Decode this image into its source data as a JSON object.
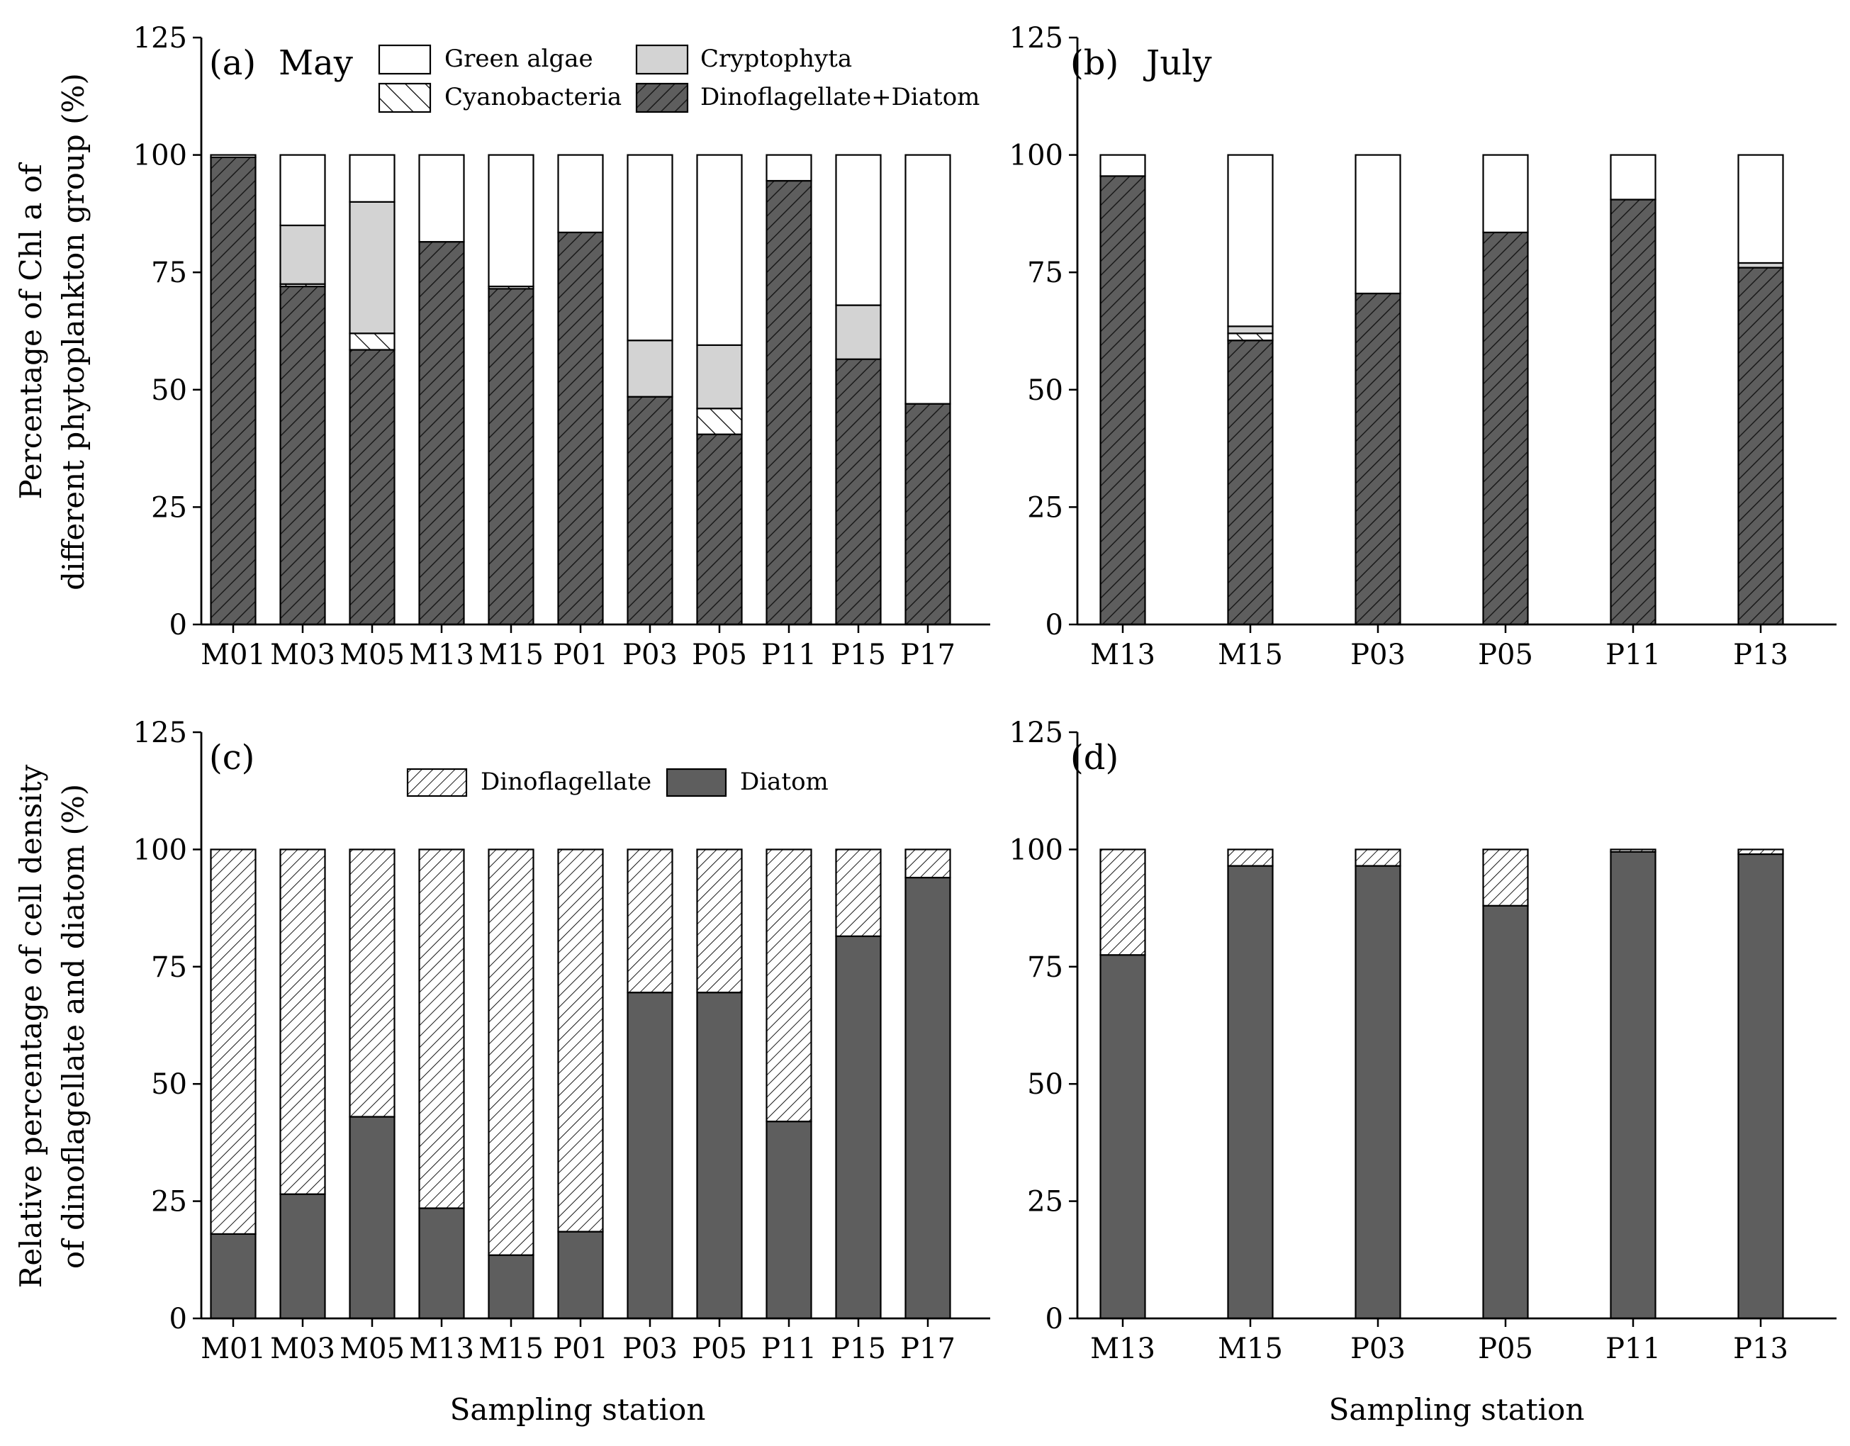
{
  "axis_titles": {
    "y_top_line1": "Percentage of Chl a of",
    "y_top_line2": "different phytoplankton group (%)",
    "y_bottom_line1": "Relative percentage of cell density",
    "y_bottom_line2": "of dinoflagellate and diatom (%)",
    "x_bottom_left": "Sampling station",
    "x_bottom_right": "Sampling station"
  },
  "colors": {
    "dark": "#5e5e5e",
    "light_gray": "#d3d3d3",
    "white": "#ffffff",
    "stroke": "#000000"
  },
  "chart_data": [
    {
      "id": "a",
      "type": "bar",
      "stacked": true,
      "panel_label": "(a)",
      "title": "May",
      "ylim": [
        0,
        125
      ],
      "yticks": [
        0,
        25,
        50,
        75,
        100,
        125
      ],
      "xlabel": "",
      "ylabel": "Percentage of Chl a of different phytoplankton group (%)",
      "categories": [
        "M01",
        "M03",
        "M05",
        "M13",
        "M15",
        "P01",
        "P03",
        "P05",
        "P11",
        "P15",
        "P17"
      ],
      "series": [
        {
          "name": "Dinoflagellate+Diatom",
          "fill": "dark-hatch",
          "values": [
            99.5,
            72,
            58.5,
            81.5,
            71.5,
            83.5,
            48.5,
            40.5,
            94.5,
            56.5,
            47
          ]
        },
        {
          "name": "Cyanobacteria",
          "fill": "sparse-hatch",
          "values": [
            0,
            0.5,
            3.5,
            0,
            0.5,
            0,
            0,
            5.5,
            0,
            0,
            0
          ]
        },
        {
          "name": "Cryptophyta",
          "fill": "light-gray",
          "values": [
            0,
            12.5,
            28,
            0,
            0,
            0,
            12,
            13.5,
            0,
            11.5,
            0
          ]
        },
        {
          "name": "Green algae",
          "fill": "white",
          "values": [
            0.5,
            15,
            10,
            18.5,
            28,
            16.5,
            39.5,
            40.5,
            5.5,
            32,
            53
          ]
        }
      ],
      "legend": {
        "entries": [
          {
            "name": "Green algae",
            "fill": "white"
          },
          {
            "name": "Cryptophyta",
            "fill": "light-gray"
          },
          {
            "name": "Cyanobacteria",
            "fill": "sparse-hatch"
          },
          {
            "name": "Dinoflagellate+Diatom",
            "fill": "dark-hatch"
          }
        ],
        "placement": "top"
      }
    },
    {
      "id": "b",
      "type": "bar",
      "stacked": true,
      "panel_label": "(b)",
      "title": "July",
      "ylim": [
        0,
        125
      ],
      "yticks": [
        0,
        25,
        50,
        75,
        100,
        125
      ],
      "xlabel": "",
      "ylabel": "",
      "categories": [
        "M13",
        "M15",
        "P03",
        "P05",
        "P11",
        "P13"
      ],
      "series": [
        {
          "name": "Dinoflagellate+Diatom",
          "fill": "dark-hatch",
          "values": [
            95.5,
            60.5,
            70.5,
            83.5,
            90.5,
            76
          ]
        },
        {
          "name": "Cyanobacteria",
          "fill": "sparse-hatch",
          "values": [
            0,
            1.5,
            0,
            0,
            0,
            0
          ]
        },
        {
          "name": "Cryptophyta",
          "fill": "light-gray",
          "values": [
            0,
            1.5,
            0,
            0,
            0,
            1
          ]
        },
        {
          "name": "Green algae",
          "fill": "white",
          "values": [
            4.5,
            36.5,
            29.5,
            16.5,
            9.5,
            23
          ]
        }
      ]
    },
    {
      "id": "c",
      "type": "bar",
      "stacked": true,
      "panel_label": "(c)",
      "title": "",
      "ylim": [
        0,
        125
      ],
      "yticks": [
        0,
        25,
        50,
        75,
        100,
        125
      ],
      "xlabel": "Sampling station",
      "ylabel": "Relative percentage of cell density of dinoflagellate and diatom (%)",
      "categories": [
        "M01",
        "M03",
        "M05",
        "M13",
        "M15",
        "P01",
        "P03",
        "P05",
        "P11",
        "P15",
        "P17"
      ],
      "series": [
        {
          "name": "Diatom",
          "fill": "dark",
          "values": [
            18,
            26.5,
            43,
            23.5,
            13.5,
            18.5,
            69.5,
            69.5,
            42,
            81.5,
            94
          ]
        },
        {
          "name": "Dinoflagellate",
          "fill": "hatch",
          "values": [
            82,
            73.5,
            57,
            76.5,
            86.5,
            81.5,
            30.5,
            30.5,
            58,
            18.5,
            6
          ]
        }
      ],
      "legend": {
        "entries": [
          {
            "name": "Dinoflagellate",
            "fill": "hatch"
          },
          {
            "name": "Diatom",
            "fill": "dark"
          }
        ],
        "placement": "top"
      }
    },
    {
      "id": "d",
      "type": "bar",
      "stacked": true,
      "panel_label": "(d)",
      "title": "",
      "ylim": [
        0,
        125
      ],
      "yticks": [
        0,
        25,
        50,
        75,
        100,
        125
      ],
      "xlabel": "Sampling station",
      "ylabel": "",
      "categories": [
        "M13",
        "M15",
        "P03",
        "P05",
        "P11",
        "P13"
      ],
      "series": [
        {
          "name": "Diatom",
          "fill": "dark",
          "values": [
            77.5,
            96.5,
            96.5,
            88,
            99.5,
            99
          ]
        },
        {
          "name": "Dinoflagellate",
          "fill": "hatch",
          "values": [
            22.5,
            3.5,
            3.5,
            12,
            0.5,
            1
          ]
        }
      ]
    }
  ]
}
